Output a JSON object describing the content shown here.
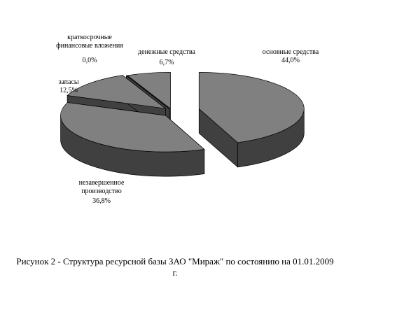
{
  "chart_data": {
    "type": "pie",
    "title": "Рисунок 2 - Структура ресурсной базы ЗАО \"Мираж\" по состоянию на 01.01.2009 г.",
    "categories": [
      "основные средства",
      "незавершенное\nпроизводство",
      "запасы",
      "краткосрочные\nфинансовые вложения",
      "денежные средства"
    ],
    "values": [
      44.0,
      36.8,
      12.5,
      0.0,
      6.7
    ],
    "value_labels": [
      "44,0%",
      "36,8%",
      "12,5%",
      "0,0%",
      "6,7%"
    ],
    "color": "#808080"
  }
}
